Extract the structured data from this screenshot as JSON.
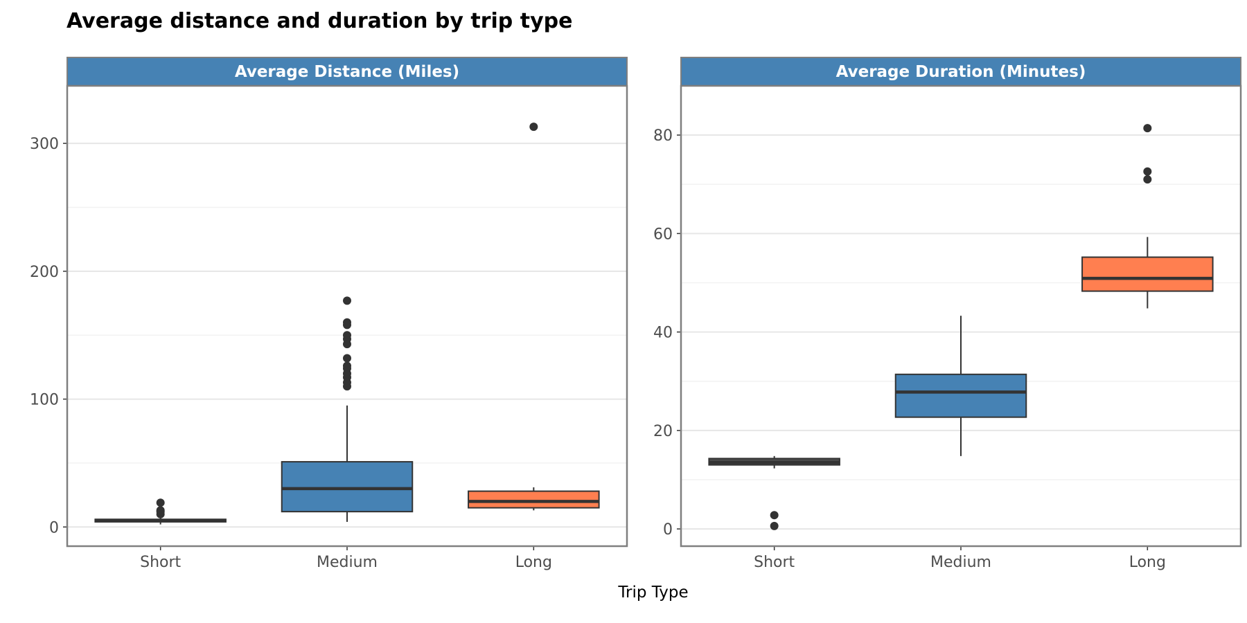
{
  "title": "Average distance and duration by trip type",
  "xlabel": "Trip Type",
  "colors": {
    "short": "#4d4d4d",
    "medium": "#4682b4",
    "long": "#ff7f50",
    "strip": "#4682b4",
    "panel_border": "#7f7f7f",
    "grid_major": "#e6e6e6",
    "grid_minor": "#f2f2f2",
    "outline": "#333333"
  },
  "chart_data": [
    {
      "type": "boxplot",
      "panel_title": "Average Distance (Miles)",
      "categories": [
        "Short",
        "Medium",
        "Long"
      ],
      "fill_colors": [
        "#4d4d4d",
        "#4682b4",
        "#ff7f50"
      ],
      "ylim": [
        -15,
        345
      ],
      "yticks": [
        0,
        100,
        200,
        300
      ],
      "ytick_labels": [
        "0",
        "100",
        "200",
        "300"
      ],
      "grid": true,
      "boxes": [
        {
          "category": "Short",
          "whisker_low": 2,
          "q1": 4,
          "median": 5,
          "q3": 6,
          "whisker_high": 8,
          "outliers": [
            10,
            12,
            13,
            19
          ]
        },
        {
          "category": "Medium",
          "whisker_low": 4,
          "q1": 12,
          "median": 30,
          "q3": 51,
          "whisker_high": 95,
          "outliers": [
            110,
            113,
            117,
            120,
            124,
            126,
            132,
            143,
            147,
            150,
            158,
            160,
            177
          ]
        },
        {
          "category": "Long",
          "whisker_low": 13,
          "q1": 15,
          "median": 20,
          "q3": 28,
          "whisker_high": 31,
          "outliers": [
            313
          ]
        }
      ]
    },
    {
      "type": "boxplot",
      "panel_title": "Average Duration (Minutes)",
      "categories": [
        "Short",
        "Medium",
        "Long"
      ],
      "fill_colors": [
        "#4d4d4d",
        "#4682b4",
        "#ff7f50"
      ],
      "ylim": [
        -3.5,
        90
      ],
      "yticks": [
        0,
        20,
        40,
        60,
        80
      ],
      "ytick_labels": [
        "0",
        "20",
        "40",
        "60",
        "80"
      ],
      "grid": true,
      "boxes": [
        {
          "category": "Short",
          "whisker_low": 12.3,
          "q1": 13,
          "median": 13.5,
          "q3": 14.3,
          "whisker_high": 14.8,
          "outliers": [
            0.6,
            2.8
          ]
        },
        {
          "category": "Medium",
          "whisker_low": 14.8,
          "q1": 22.7,
          "median": 27.8,
          "q3": 31.4,
          "whisker_high": 43.3,
          "outliers": []
        },
        {
          "category": "Long",
          "whisker_low": 44.8,
          "q1": 48.3,
          "median": 50.9,
          "q3": 55.2,
          "whisker_high": 59.3,
          "outliers": [
            71,
            72.6,
            81.4
          ]
        }
      ]
    }
  ]
}
